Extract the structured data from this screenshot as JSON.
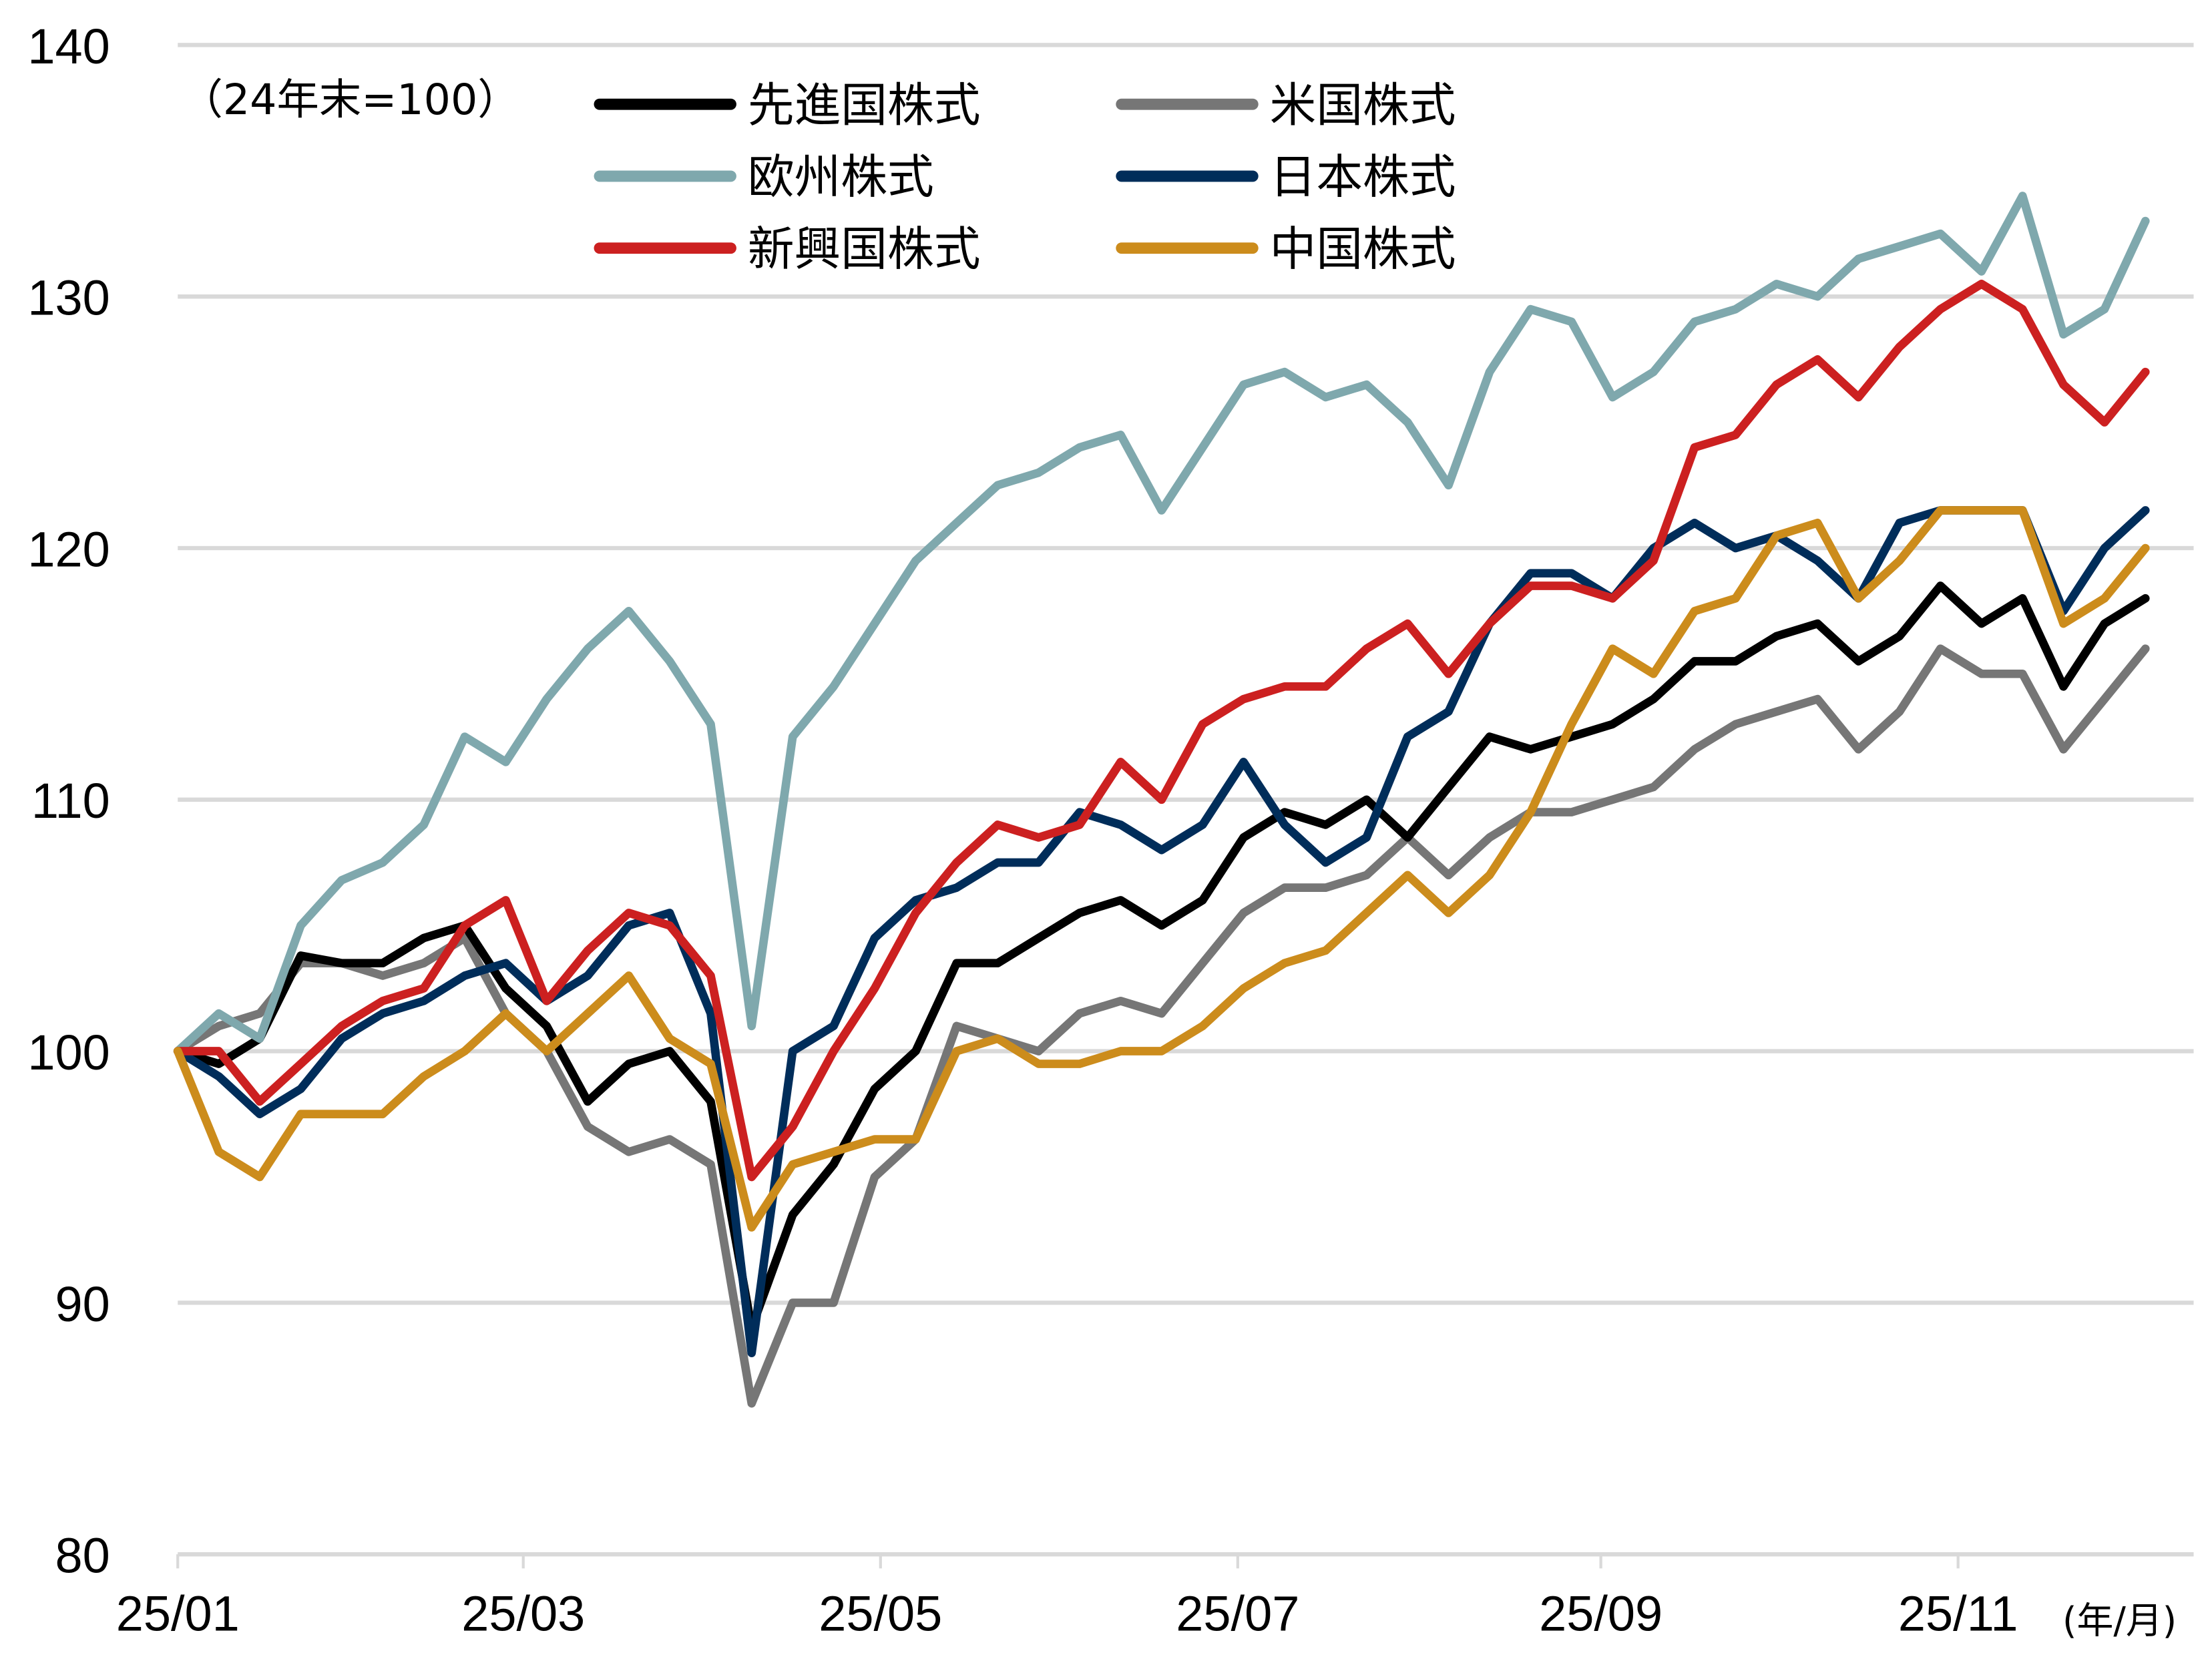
{
  "chart_data": {
    "type": "line",
    "title": "",
    "note": "（24年末=100）",
    "xlabel": "(年/月)",
    "ylabel": "",
    "ylim": [
      80,
      140
    ],
    "yticks": [
      "80",
      "90",
      "100",
      "110",
      "120",
      "130",
      "140"
    ],
    "ytick_values": [
      80,
      90,
      100,
      110,
      120,
      130,
      140
    ],
    "xticks": [
      "25/01",
      "25/03",
      "25/05",
      "25/07",
      "25/09",
      "25/11"
    ],
    "xtick_dates": [
      "2025-01-01",
      "2025-03-01",
      "2025-05-01",
      "2025-07-01",
      "2025-09-01",
      "2025-11-01"
    ],
    "grid": true,
    "legend_position": "top-left",
    "x": [
      "2025-01-01",
      "2025-01-08",
      "2025-01-15",
      "2025-01-22",
      "2025-01-29",
      "2025-02-05",
      "2025-02-12",
      "2025-02-19",
      "2025-02-26",
      "2025-03-05",
      "2025-03-12",
      "2025-03-19",
      "2025-03-26",
      "2025-04-02",
      "2025-04-09",
      "2025-04-16",
      "2025-04-23",
      "2025-04-30",
      "2025-05-07",
      "2025-05-14",
      "2025-05-21",
      "2025-05-28",
      "2025-06-04",
      "2025-06-11",
      "2025-06-18",
      "2025-06-25",
      "2025-07-02",
      "2025-07-09",
      "2025-07-16",
      "2025-07-23",
      "2025-07-30",
      "2025-08-06",
      "2025-08-13",
      "2025-08-20",
      "2025-08-27",
      "2025-09-03",
      "2025-09-10",
      "2025-09-17",
      "2025-09-24",
      "2025-10-01",
      "2025-10-08",
      "2025-10-15",
      "2025-10-22",
      "2025-10-29",
      "2025-11-05",
      "2025-11-12",
      "2025-11-19",
      "2025-11-26",
      "2025-12-03"
    ],
    "series": [
      {
        "name": "米国株式",
        "color": "#767676",
        "values": [
          100,
          101,
          101.5,
          103.5,
          103.5,
          103,
          103.5,
          104.5,
          101.5,
          100,
          97,
          96,
          96.5,
          95.5,
          86,
          90,
          90,
          95,
          96.5,
          101,
          100.5,
          100,
          101.5,
          102,
          101.5,
          103.5,
          105.5,
          106.5,
          106.5,
          107,
          108.5,
          107,
          108.5,
          109.5,
          109.5,
          110,
          110.5,
          112,
          113,
          113.5,
          114,
          112,
          113.5,
          116,
          115,
          115,
          112,
          114,
          116
        ]
      },
      {
        "name": "先進国株式",
        "color": "#000000",
        "values": [
          100,
          99.5,
          100.5,
          103.8,
          103.5,
          103.5,
          104.5,
          105,
          102.5,
          101,
          98,
          99.5,
          100,
          98,
          89,
          93.5,
          95.5,
          98.5,
          100,
          103.5,
          103.5,
          104.5,
          105.5,
          106,
          105,
          106,
          108.5,
          109.5,
          109,
          110,
          108.5,
          110.5,
          112.5,
          112,
          112.5,
          113,
          114,
          115.5,
          115.5,
          116.5,
          117,
          115.5,
          116.5,
          118.5,
          117,
          118,
          114.5,
          117,
          118
        ]
      },
      {
        "name": "欧州株式",
        "color": "#7fa8ad",
        "values": [
          100,
          101.5,
          100.5,
          105,
          106.8,
          107.5,
          109,
          112.5,
          111.5,
          114,
          116,
          117.5,
          115.5,
          113,
          101,
          112.5,
          114.5,
          117,
          119.5,
          121,
          122.5,
          123,
          124,
          124.5,
          121.5,
          124,
          126.5,
          127,
          126,
          126.5,
          125,
          122.5,
          127,
          129.5,
          129,
          126,
          127,
          129,
          129.5,
          130.5,
          130,
          131.5,
          132,
          132.5,
          131,
          134,
          128.5,
          129.5,
          133
        ]
      },
      {
        "name": "日本株式",
        "color": "#002d5a",
        "values": [
          100,
          99,
          97.5,
          98.5,
          100.5,
          101.5,
          102,
          103,
          103.5,
          102,
          103,
          105,
          105.5,
          101.5,
          88,
          100,
          101,
          104.5,
          106,
          106.5,
          107.5,
          107.5,
          109.5,
          109,
          108,
          109,
          111.5,
          109,
          107.5,
          108.5,
          112.5,
          113.5,
          117,
          119,
          119,
          118,
          120,
          121,
          120,
          120.5,
          119.5,
          118,
          121,
          121.5,
          121.5,
          121.5,
          117.5,
          120,
          121.5
        ]
      },
      {
        "name": "新興国株式",
        "color": "#cc2020",
        "values": [
          100,
          100,
          98,
          99.5,
          101,
          102,
          102.5,
          105,
          106,
          102,
          104,
          105.5,
          105,
          103,
          95,
          97,
          100,
          102.5,
          105.5,
          107.5,
          109,
          108.5,
          109,
          111.5,
          110,
          113,
          114,
          114.5,
          114.5,
          116,
          117,
          115,
          117,
          118.5,
          118.5,
          118,
          119.5,
          124,
          124.5,
          126.5,
          127.5,
          126,
          128,
          129.5,
          130.5,
          129.5,
          126.5,
          125,
          127
        ]
      },
      {
        "name": "中国株式",
        "color": "#cc8c1c",
        "values": [
          100,
          96,
          95,
          97.5,
          97.5,
          97.5,
          99,
          100,
          101.5,
          100,
          101.5,
          103,
          100.5,
          99.5,
          93,
          95.5,
          96,
          96.5,
          96.5,
          100,
          100.5,
          99.5,
          99.5,
          100,
          100,
          101,
          102.5,
          103.5,
          104,
          105.5,
          107,
          105.5,
          107,
          109.5,
          113,
          116,
          115,
          117.5,
          118,
          120.5,
          121,
          118,
          119.5,
          121.5,
          121.5,
          121.5,
          117,
          118,
          120
        ]
      }
    ],
    "legend_order": [
      "先進国株式",
      "米国株式",
      "欧州株式",
      "日本株式",
      "新興国株式",
      "中国株式"
    ]
  }
}
